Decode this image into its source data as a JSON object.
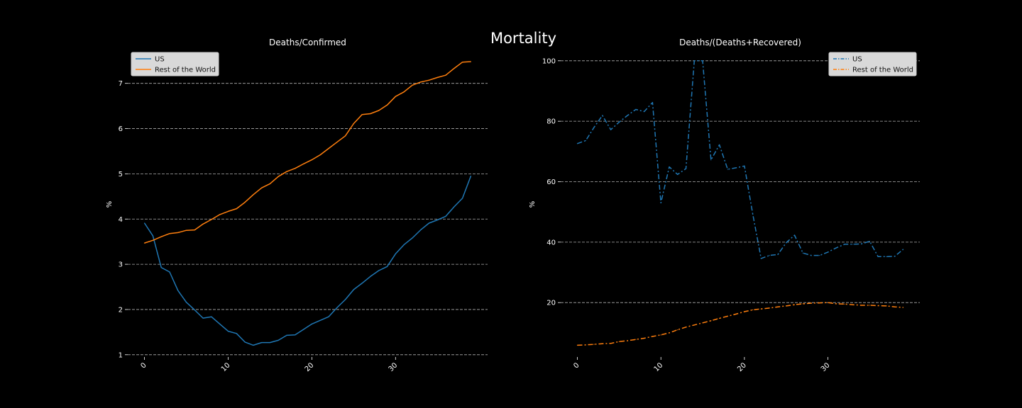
{
  "figure": {
    "suptitle": "Mortality"
  },
  "colors": {
    "background": "#000000",
    "us": "#1f77b4",
    "rest": "#ff7f0e",
    "grid": "#b0b0b0",
    "text": "#ffffff",
    "legend_bg": "#d9d9d9"
  },
  "chart_data": [
    {
      "type": "line",
      "title": "Deaths/Confirmed",
      "xlabel": "",
      "ylabel": "%",
      "xlim": [
        -2,
        41
      ],
      "ylim": [
        0.95,
        7.7
      ],
      "x_ticks": [
        0,
        10,
        20,
        30
      ],
      "y_ticks": [
        1,
        2,
        3,
        4,
        5,
        6,
        7
      ],
      "grid": "y-dashed",
      "legend": "top-left",
      "line_style": "solid",
      "x": [
        0,
        1,
        2,
        3,
        4,
        5,
        6,
        7,
        8,
        9,
        10,
        11,
        12,
        13,
        14,
        15,
        16,
        17,
        18,
        19,
        20,
        21,
        22,
        23,
        24,
        25,
        26,
        27,
        28,
        29,
        30,
        31,
        32,
        33,
        34,
        35,
        36,
        37,
        38,
        39
      ],
      "series": [
        {
          "name": "US",
          "color": "#1f77b4",
          "values": [
            3.91,
            3.63,
            2.93,
            2.83,
            2.42,
            2.16,
            1.99,
            1.81,
            1.84,
            1.68,
            1.52,
            1.47,
            1.28,
            1.21,
            1.27,
            1.27,
            1.32,
            1.43,
            1.44,
            1.56,
            1.68,
            1.76,
            1.84,
            2.04,
            2.22,
            2.44,
            2.58,
            2.73,
            2.86,
            2.95,
            3.23,
            3.43,
            3.58,
            3.76,
            3.91,
            3.98,
            4.06,
            4.27,
            4.46,
            4.95
          ]
        },
        {
          "name": "Rest of the World",
          "color": "#ff7f0e",
          "values": [
            3.47,
            3.53,
            3.61,
            3.68,
            3.7,
            3.75,
            3.76,
            3.89,
            3.99,
            4.1,
            4.17,
            4.23,
            4.37,
            4.54,
            4.69,
            4.78,
            4.94,
            5.05,
            5.12,
            5.22,
            5.31,
            5.42,
            5.56,
            5.7,
            5.84,
            6.11,
            6.31,
            6.33,
            6.4,
            6.52,
            6.71,
            6.81,
            6.96,
            7.03,
            7.07,
            7.13,
            7.18,
            7.33,
            7.47,
            7.48
          ]
        }
      ]
    },
    {
      "type": "line",
      "title": "Deaths/(Deaths+Recovered)",
      "xlabel": "",
      "ylabel": "%",
      "xlim": [
        -2,
        41
      ],
      "ylim": [
        2,
        103
      ],
      "x_ticks": [
        0,
        10,
        20,
        30
      ],
      "y_ticks": [
        20,
        40,
        60,
        80,
        100
      ],
      "grid": "y-dashed",
      "legend": "top-right",
      "line_style": "dashdot",
      "x": [
        0,
        1,
        2,
        3,
        4,
        5,
        6,
        7,
        8,
        9,
        10,
        11,
        12,
        13,
        14,
        15,
        16,
        17,
        18,
        19,
        20,
        21,
        22,
        23,
        24,
        25,
        26,
        27,
        28,
        29,
        30,
        31,
        32,
        33,
        34,
        35,
        36,
        37,
        38,
        39
      ],
      "series": [
        {
          "name": "US",
          "color": "#1f77b4",
          "values": [
            72.6,
            73.6,
            78.0,
            81.9,
            77.2,
            79.7,
            81.9,
            83.9,
            83.2,
            86.2,
            53.0,
            64.9,
            62.4,
            64.3,
            100,
            100,
            67.2,
            72.2,
            64.1,
            64.6,
            65.2,
            49.2,
            34.6,
            35.6,
            35.9,
            39.8,
            42.3,
            36.4,
            35.6,
            35.6,
            36.7,
            38.1,
            39.3,
            39.3,
            39.4,
            40.3,
            35.2,
            35.2,
            35.3,
            37.6
          ]
        },
        {
          "name": "Rest of the World",
          "color": "#ff7f0e",
          "values": [
            5.9,
            6.0,
            6.2,
            6.4,
            6.5,
            7.1,
            7.4,
            7.8,
            8.2,
            8.8,
            9.3,
            10.0,
            11.0,
            11.9,
            12.6,
            13.3,
            14.0,
            14.8,
            15.5,
            16.2,
            17.0,
            17.6,
            17.9,
            18.2,
            18.6,
            18.9,
            19.3,
            19.6,
            19.8,
            19.9,
            20.0,
            19.6,
            19.5,
            19.3,
            19.1,
            19.1,
            19.0,
            18.9,
            18.6,
            18.4
          ]
        }
      ]
    }
  ]
}
